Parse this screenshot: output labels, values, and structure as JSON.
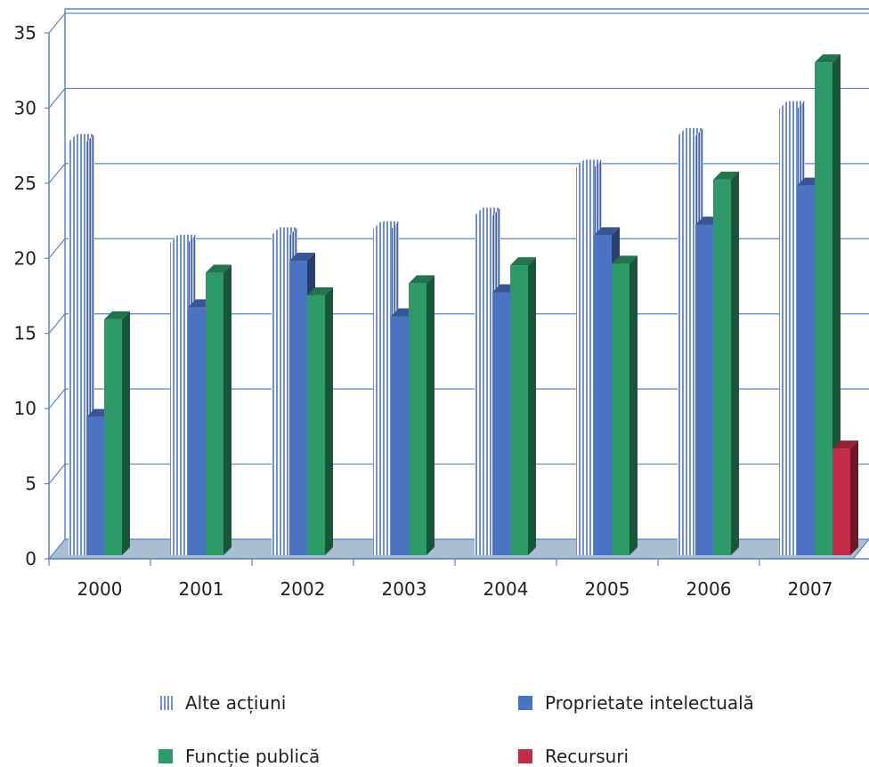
{
  "chart_data": {
    "type": "bar",
    "categories": [
      "2000",
      "2001",
      "2002",
      "2003",
      "2004",
      "2005",
      "2006",
      "2007"
    ],
    "series": [
      {
        "name": "Alte acțiuni",
        "color": "#6f8fcf",
        "pattern": "vertical-stripes",
        "values": [
          27.5,
          20.8,
          21.3,
          21.7,
          22.6,
          25.8,
          27.9,
          29.7
        ]
      },
      {
        "name": "Proprietate intelectuală",
        "color": "#4a73c2",
        "values": [
          9.2,
          16.5,
          19.6,
          15.9,
          17.5,
          21.3,
          22.0,
          24.6
        ]
      },
      {
        "name": "Funcție publică",
        "color": "#2e9a68",
        "values": [
          15.7,
          18.8,
          17.3,
          18.1,
          19.3,
          19.4,
          25.0,
          32.8
        ]
      },
      {
        "name": "Recursuri",
        "color": "#c42c4a",
        "values": [
          null,
          null,
          null,
          null,
          null,
          null,
          null,
          7.1
        ]
      }
    ],
    "ylim": [
      0,
      35
    ],
    "yticks": [
      "0",
      "5",
      "10",
      "15",
      "20",
      "25",
      "30",
      "35"
    ],
    "grid": true,
    "legend_position": "bottom"
  }
}
